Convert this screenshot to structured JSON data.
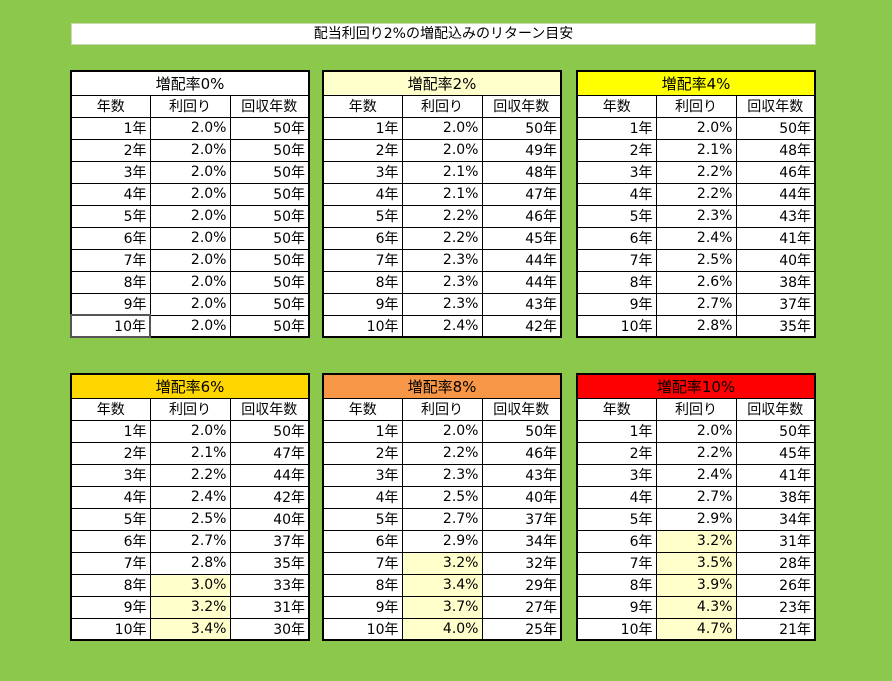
{
  "title": "配当利回り2%の増配込みのリターン目安",
  "column_headers": [
    "年数",
    "利回り",
    "回収年数"
  ],
  "tables": [
    {
      "heading": "増配率0%",
      "header_color": "#ffffff",
      "rows": [
        {
          "year": "1年",
          "yield": "2.0%",
          "payback": "50年"
        },
        {
          "year": "2年",
          "yield": "2.0%",
          "payback": "50年"
        },
        {
          "year": "3年",
          "yield": "2.0%",
          "payback": "50年"
        },
        {
          "year": "4年",
          "yield": "2.0%",
          "payback": "50年"
        },
        {
          "year": "5年",
          "yield": "2.0%",
          "payback": "50年"
        },
        {
          "year": "6年",
          "yield": "2.0%",
          "payback": "50年"
        },
        {
          "year": "7年",
          "yield": "2.0%",
          "payback": "50年"
        },
        {
          "year": "8年",
          "yield": "2.0%",
          "payback": "50年"
        },
        {
          "year": "9年",
          "yield": "2.0%",
          "payback": "50年"
        },
        {
          "year": "10年",
          "yield": "2.0%",
          "payback": "50年"
        }
      ]
    },
    {
      "heading": "増配率2%",
      "header_color": "#ffffcc",
      "rows": [
        {
          "year": "1年",
          "yield": "2.0%",
          "payback": "50年"
        },
        {
          "year": "2年",
          "yield": "2.0%",
          "payback": "49年"
        },
        {
          "year": "3年",
          "yield": "2.1%",
          "payback": "48年"
        },
        {
          "year": "4年",
          "yield": "2.1%",
          "payback": "47年"
        },
        {
          "year": "5年",
          "yield": "2.2%",
          "payback": "46年"
        },
        {
          "year": "6年",
          "yield": "2.2%",
          "payback": "45年"
        },
        {
          "year": "7年",
          "yield": "2.3%",
          "payback": "44年"
        },
        {
          "year": "8年",
          "yield": "2.3%",
          "payback": "44年"
        },
        {
          "year": "9年",
          "yield": "2.3%",
          "payback": "43年"
        },
        {
          "year": "10年",
          "yield": "2.4%",
          "payback": "42年"
        }
      ]
    },
    {
      "heading": "増配率4%",
      "header_color": "#ffff00",
      "rows": [
        {
          "year": "1年",
          "yield": "2.0%",
          "payback": "50年"
        },
        {
          "year": "2年",
          "yield": "2.1%",
          "payback": "48年"
        },
        {
          "year": "3年",
          "yield": "2.2%",
          "payback": "46年"
        },
        {
          "year": "4年",
          "yield": "2.2%",
          "payback": "44年"
        },
        {
          "year": "5年",
          "yield": "2.3%",
          "payback": "43年"
        },
        {
          "year": "6年",
          "yield": "2.4%",
          "payback": "41年"
        },
        {
          "year": "7年",
          "yield": "2.5%",
          "payback": "40年"
        },
        {
          "year": "8年",
          "yield": "2.6%",
          "payback": "38年"
        },
        {
          "year": "9年",
          "yield": "2.7%",
          "payback": "37年"
        },
        {
          "year": "10年",
          "yield": "2.8%",
          "payback": "35年"
        }
      ]
    },
    {
      "heading": "増配率6%",
      "header_color": "#ffd700",
      "rows": [
        {
          "year": "1年",
          "yield": "2.0%",
          "payback": "50年"
        },
        {
          "year": "2年",
          "yield": "2.1%",
          "payback": "47年"
        },
        {
          "year": "3年",
          "yield": "2.2%",
          "payback": "44年"
        },
        {
          "year": "4年",
          "yield": "2.4%",
          "payback": "42年"
        },
        {
          "year": "5年",
          "yield": "2.5%",
          "payback": "40年"
        },
        {
          "year": "6年",
          "yield": "2.7%",
          "payback": "37年"
        },
        {
          "year": "7年",
          "yield": "2.8%",
          "payback": "35年"
        },
        {
          "year": "8年",
          "yield": "3.0%",
          "payback": "33年",
          "highlight": true
        },
        {
          "year": "9年",
          "yield": "3.2%",
          "payback": "31年",
          "highlight": true
        },
        {
          "year": "10年",
          "yield": "3.4%",
          "payback": "30年",
          "highlight": true
        }
      ]
    },
    {
      "heading": "増配率8%",
      "header_color": "#f79646",
      "rows": [
        {
          "year": "1年",
          "yield": "2.0%",
          "payback": "50年"
        },
        {
          "year": "2年",
          "yield": "2.2%",
          "payback": "46年"
        },
        {
          "year": "3年",
          "yield": "2.3%",
          "payback": "43年"
        },
        {
          "year": "4年",
          "yield": "2.5%",
          "payback": "40年"
        },
        {
          "year": "5年",
          "yield": "2.7%",
          "payback": "37年"
        },
        {
          "year": "6年",
          "yield": "2.9%",
          "payback": "34年"
        },
        {
          "year": "7年",
          "yield": "3.2%",
          "payback": "32年",
          "highlight": true
        },
        {
          "year": "8年",
          "yield": "3.4%",
          "payback": "29年",
          "highlight": true
        },
        {
          "year": "9年",
          "yield": "3.7%",
          "payback": "27年",
          "highlight": true
        },
        {
          "year": "10年",
          "yield": "4.0%",
          "payback": "25年",
          "highlight": true
        }
      ]
    },
    {
      "heading": "増配率10%",
      "header_color": "#ff0000",
      "rows": [
        {
          "year": "1年",
          "yield": "2.0%",
          "payback": "50年"
        },
        {
          "year": "2年",
          "yield": "2.2%",
          "payback": "45年"
        },
        {
          "year": "3年",
          "yield": "2.4%",
          "payback": "41年"
        },
        {
          "year": "4年",
          "yield": "2.7%",
          "payback": "38年"
        },
        {
          "year": "5年",
          "yield": "2.9%",
          "payback": "34年"
        },
        {
          "year": "6年",
          "yield": "3.2%",
          "payback": "31年",
          "highlight": true
        },
        {
          "year": "7年",
          "yield": "3.5%",
          "payback": "28年",
          "highlight": true
        },
        {
          "year": "8年",
          "yield": "3.9%",
          "payback": "26年",
          "highlight": true
        },
        {
          "year": "9年",
          "yield": "4.3%",
          "payback": "23年",
          "highlight": true
        },
        {
          "year": "10年",
          "yield": "4.7%",
          "payback": "21年",
          "highlight": true
        }
      ]
    }
  ]
}
